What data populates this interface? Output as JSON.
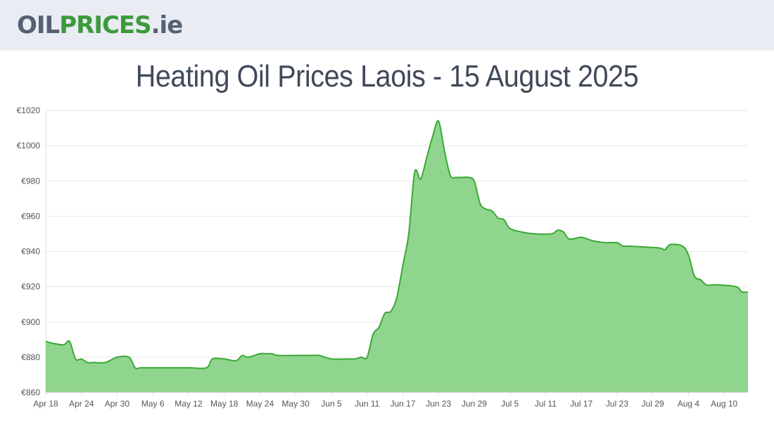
{
  "header": {
    "logo_part1": "OIL",
    "logo_part2": "PRICES",
    "logo_part3": ".ie"
  },
  "page": {
    "title": "Heating Oil Prices Laois - 15 August 2025"
  },
  "colors": {
    "line": "#3aa935",
    "fill": "#90d58d",
    "grid": "#e6e6e6",
    "brand_green": "#3c9a3a",
    "brand_gray": "#556072"
  },
  "chart_data": {
    "type": "area",
    "title": "Heating Oil Prices Laois - 15 August 2025",
    "xlabel": "",
    "ylabel": "",
    "ylim": [
      860,
      1020
    ],
    "y_ticks": [
      860,
      880,
      900,
      920,
      940,
      960,
      980,
      1000,
      1020
    ],
    "y_tick_labels": [
      "€860",
      "€880",
      "€900",
      "€920",
      "€940",
      "€960",
      "€980",
      "€1000",
      "€1020"
    ],
    "x_start_label": "Apr 18",
    "x_tick_labels": [
      "Apr 18",
      "Apr 24",
      "Apr 30",
      "May 6",
      "May 12",
      "May 18",
      "May 24",
      "May 30",
      "Jun 5",
      "Jun 11",
      "Jun 17",
      "Jun 23",
      "Jun 29",
      "Jul 5",
      "Jul 11",
      "Jul 17",
      "Jul 23",
      "Jul 29",
      "Aug 4",
      "Aug 10"
    ],
    "grid": true,
    "legend": "none",
    "series": [
      {
        "x": [
          "Apr 18",
          "Apr 19",
          "Apr 21",
          "Apr 22",
          "Apr 23",
          "Apr 24",
          "Apr 25",
          "Apr 26",
          "Apr 28",
          "Apr 30",
          "May 2",
          "May 3",
          "May 4",
          "May 6",
          "May 9",
          "May 12",
          "May 15",
          "May 16",
          "May 18",
          "May 20",
          "May 21",
          "May 22",
          "May 24",
          "May 25",
          "May 26",
          "May 27",
          "May 30",
          "Jun 2",
          "Jun 3",
          "Jun 5",
          "Jun 8",
          "Jun 9",
          "Jun 10",
          "Jun 11",
          "Jun 12",
          "Jun 13",
          "Jun 14",
          "Jun 15",
          "Jun 16",
          "Jun 17",
          "Jun 18",
          "Jun 19",
          "Jun 20",
          "Jun 21",
          "Jun 22",
          "Jun 23",
          "Jun 24",
          "Jun 25",
          "Jun 26",
          "Jun 27",
          "Jun 28",
          "Jun 29",
          "Jun 30",
          "Jul 1",
          "Jul 2",
          "Jul 3",
          "Jul 4",
          "Jul 5",
          "Jul 7",
          "Jul 9",
          "Jul 12",
          "Jul 13",
          "Jul 14",
          "Jul 15",
          "Jul 17",
          "Jul 19",
          "Jul 21",
          "Jul 23",
          "Jul 24",
          "Jul 25",
          "Jul 30",
          "Jul 31",
          "Aug 1",
          "Aug 3",
          "Aug 4",
          "Aug 5",
          "Aug 6",
          "Aug 7",
          "Aug 8",
          "Aug 9",
          "Aug 12",
          "Aug 13",
          "Aug 14"
        ],
        "values": [
          889,
          888,
          887,
          889,
          879,
          879,
          877,
          877,
          877,
          880,
          880,
          874,
          874,
          874,
          874,
          874,
          874,
          879,
          879,
          878,
          881,
          880,
          882,
          882,
          882,
          881,
          881,
          881,
          881,
          879,
          879,
          879,
          880,
          880,
          893,
          897,
          905,
          906,
          914,
          932,
          950,
          985,
          981,
          993,
          1005,
          1014,
          997,
          983,
          982,
          982,
          982,
          980,
          967,
          964,
          963,
          959,
          958,
          953,
          951,
          950,
          950,
          952,
          951,
          947,
          948,
          946,
          945,
          945,
          943,
          943,
          942,
          941,
          944,
          943,
          938,
          926,
          924,
          921,
          921,
          921,
          920,
          917,
          917
        ]
      }
    ]
  }
}
